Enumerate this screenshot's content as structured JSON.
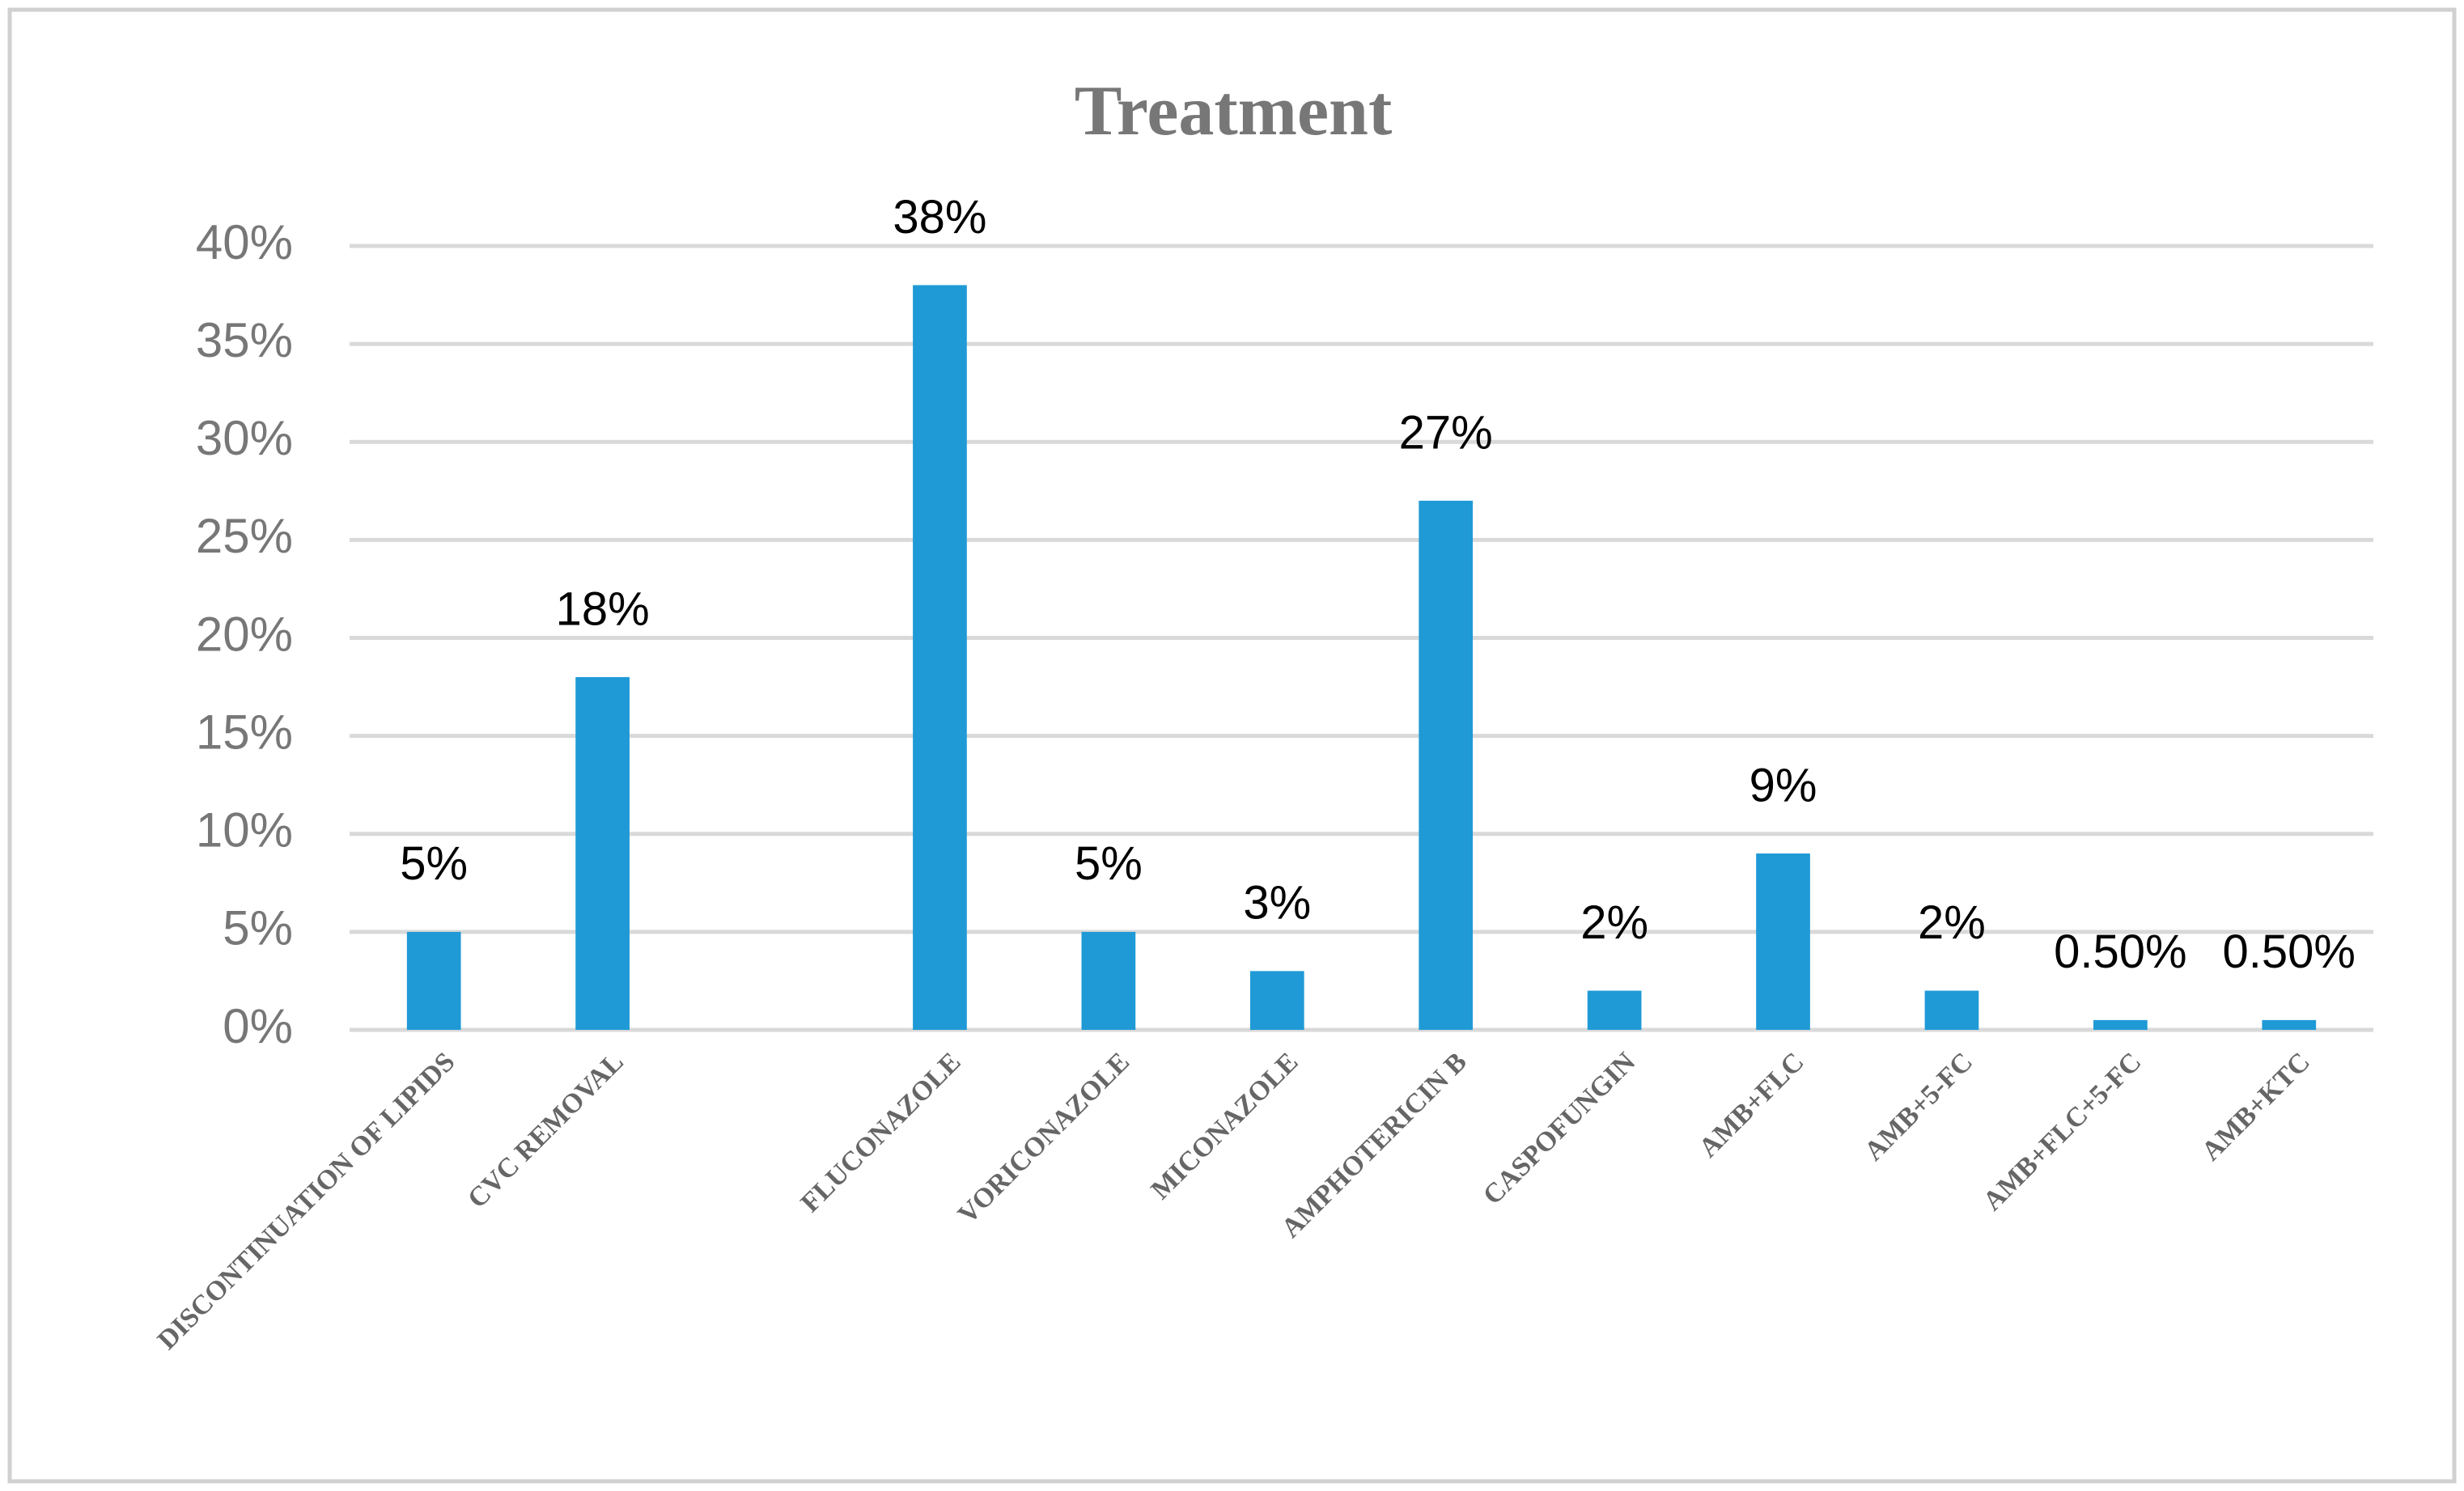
{
  "chart_data": {
    "type": "bar",
    "title": "Treatment",
    "categories": [
      "DISCONTINUATION OF LIPIDS",
      "CVC REMOVAL",
      null,
      "FLUCONAZOLE",
      "VORICONAZOLE",
      "MICONAZOLE",
      "AMPHOTERICIN B",
      "CASPOFUNGIN",
      "AMB+FLC",
      "AMB+5-FC",
      "AMB+FLC+5-FC",
      "AMB+KTC"
    ],
    "values": [
      5,
      18,
      null,
      38,
      5,
      3,
      27,
      2,
      9,
      2,
      0.5,
      0.5
    ],
    "value_labels": [
      "5%",
      "18%",
      null,
      "38%",
      "5%",
      "3%",
      "27%",
      "2%",
      "9%",
      "2%",
      "0.50%",
      "0.50%"
    ],
    "color": "#1f9ad6",
    "ylim": [
      0,
      40
    ],
    "yticks": [
      {
        "value": 0,
        "label": "0%"
      },
      {
        "value": 5,
        "label": "5%"
      },
      {
        "value": 10,
        "label": "10%"
      },
      {
        "value": 15,
        "label": "15%"
      },
      {
        "value": 20,
        "label": "20%"
      },
      {
        "value": 25,
        "label": "25%"
      },
      {
        "value": 30,
        "label": "30%"
      },
      {
        "value": 35,
        "label": "35%"
      },
      {
        "value": 40,
        "label": "40%"
      }
    ],
    "grid": true
  }
}
